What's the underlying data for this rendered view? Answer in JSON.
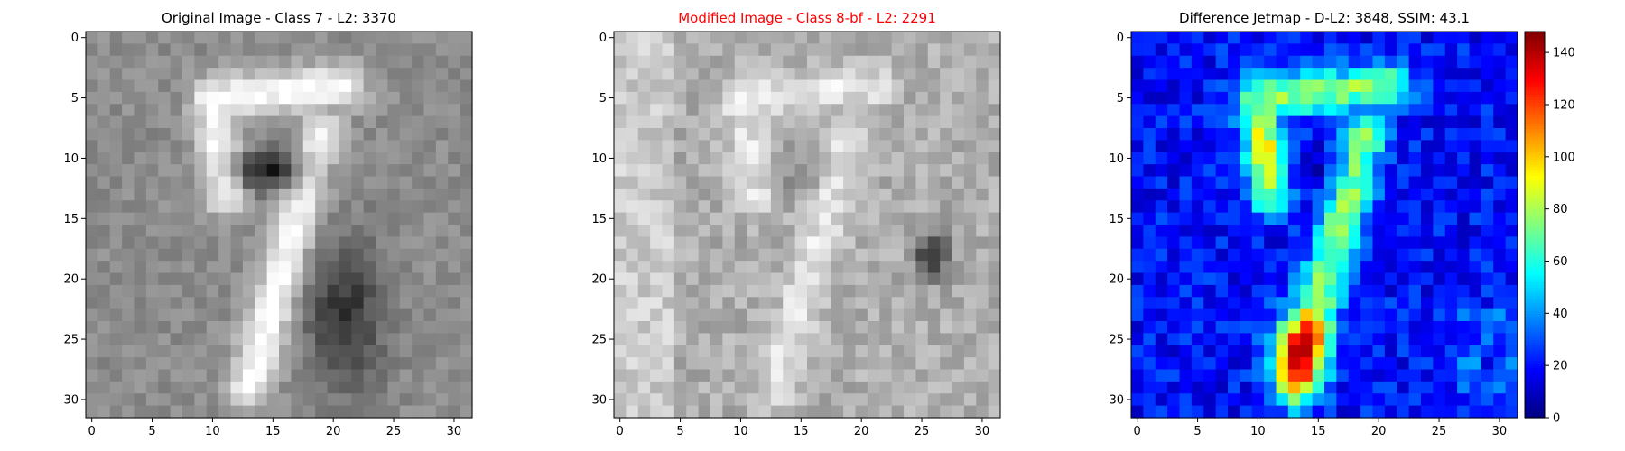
{
  "chart_data": [
    {
      "type": "heatmap",
      "title": "Original Image - Class 7 - L2: 3370",
      "title_color": "#000000",
      "colormap": "gray",
      "x_ticks": [
        0,
        5,
        10,
        15,
        20,
        25,
        30
      ],
      "y_ticks": [
        0,
        5,
        10,
        15,
        20,
        25,
        30
      ],
      "grid_size": [
        32,
        32
      ],
      "grid": "off"
    },
    {
      "type": "heatmap",
      "title": "Modified Image - Class 8-bf - L2: 2291",
      "title_color": "#ff0000",
      "colormap": "gray",
      "x_ticks": [
        0,
        5,
        10,
        15,
        20,
        25,
        30
      ],
      "y_ticks": [
        0,
        5,
        10,
        15,
        20,
        25,
        30
      ],
      "grid_size": [
        32,
        32
      ],
      "grid": "off"
    },
    {
      "type": "heatmap",
      "title": "Difference Jetmap - D-L2: 3848, SSIM: 43.1",
      "title_color": "#000000",
      "colormap": "jet",
      "x_ticks": [
        0,
        5,
        10,
        15,
        20,
        25,
        30
      ],
      "y_ticks": [
        0,
        5,
        10,
        15,
        20,
        25,
        30
      ],
      "grid_size": [
        32,
        32
      ],
      "grid": "off",
      "colorbar": {
        "range": [
          0,
          148
        ],
        "ticks": [
          0,
          20,
          40,
          60,
          80,
          100,
          120,
          140
        ]
      }
    }
  ]
}
